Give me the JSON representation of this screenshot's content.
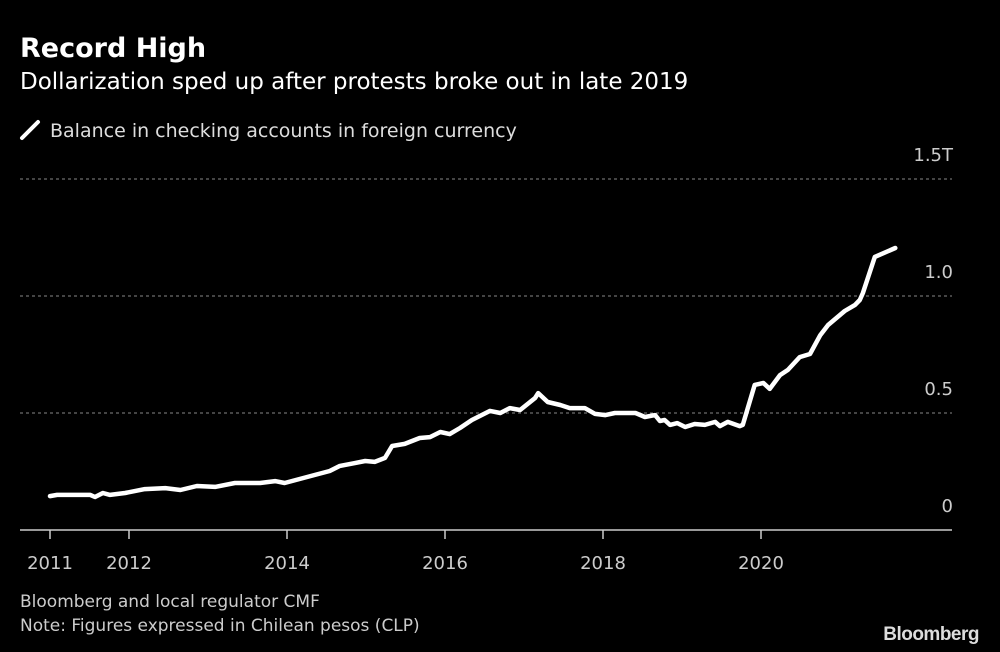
{
  "chart_data": {
    "type": "line",
    "title": "Record High",
    "subtitle": "Dollarization sped up after protests broke out in late 2019",
    "legend": [
      {
        "name": "Balance in checking accounts in foreign currency",
        "color": "#ffffff"
      }
    ],
    "legend_placement": "top-left",
    "xlabel": "",
    "ylabel": "",
    "x_ticks": [
      2011,
      2012,
      2014,
      2016,
      2018,
      2020
    ],
    "y_ticks": [
      {
        "value": 0,
        "label": "0"
      },
      {
        "value": 0.5,
        "label": "0.5"
      },
      {
        "value": 1.0,
        "label": "1.0"
      },
      {
        "value": 1.5,
        "label": "1.5T"
      }
    ],
    "xlim": [
      2010.6,
      2022.5
    ],
    "ylim": [
      0,
      1.5
    ],
    "grid": true,
    "series": [
      {
        "name": "Balance in checking accounts in foreign currency",
        "color": "#ffffff",
        "x": [
          2011.0,
          2011.09,
          2011.51,
          2011.57,
          2011.67,
          2011.76,
          2011.95,
          2012.2,
          2012.46,
          2012.65,
          2012.86,
          2013.09,
          2013.34,
          2013.66,
          2013.85,
          2013.97,
          2014.16,
          2014.35,
          2014.54,
          2014.67,
          2014.86,
          2014.99,
          2015.11,
          2015.24,
          2015.33,
          2015.49,
          2015.68,
          2015.81,
          2015.94,
          2016.06,
          2016.19,
          2016.34,
          2016.57,
          2016.7,
          2016.82,
          2016.95,
          2017.14,
          2017.18,
          2017.3,
          2017.46,
          2017.58,
          2017.77,
          2017.9,
          2018.03,
          2018.15,
          2018.41,
          2018.53,
          2018.66,
          2018.72,
          2018.78,
          2018.85,
          2018.94,
          2019.04,
          2019.16,
          2019.29,
          2019.42,
          2019.48,
          2019.58,
          2019.73,
          2019.77,
          2019.92,
          2020.03,
          2020.11,
          2020.24,
          2020.34,
          2020.49,
          2020.62,
          2020.75,
          2020.85,
          2021.06,
          2021.19,
          2021.25,
          2021.29,
          2021.44,
          2021.7
        ],
        "values": [
          0.145,
          0.15,
          0.15,
          0.141,
          0.158,
          0.15,
          0.158,
          0.175,
          0.179,
          0.171,
          0.188,
          0.184,
          0.201,
          0.201,
          0.209,
          0.201,
          0.218,
          0.235,
          0.252,
          0.274,
          0.286,
          0.295,
          0.291,
          0.308,
          0.359,
          0.368,
          0.393,
          0.397,
          0.419,
          0.41,
          0.436,
          0.47,
          0.509,
          0.5,
          0.521,
          0.513,
          0.564,
          0.585,
          0.547,
          0.534,
          0.521,
          0.521,
          0.496,
          0.491,
          0.5,
          0.5,
          0.483,
          0.491,
          0.466,
          0.47,
          0.449,
          0.457,
          0.44,
          0.453,
          0.449,
          0.462,
          0.444,
          0.462,
          0.444,
          0.449,
          0.62,
          0.628,
          0.603,
          0.662,
          0.684,
          0.739,
          0.752,
          0.833,
          0.876,
          0.936,
          0.962,
          0.983,
          1.013,
          1.167,
          1.205
        ]
      }
    ]
  },
  "source": "Bloomberg and local regulator CMF",
  "note": "Note: Figures expressed in Chilean pesos (CLP)",
  "logo": "Bloomberg"
}
